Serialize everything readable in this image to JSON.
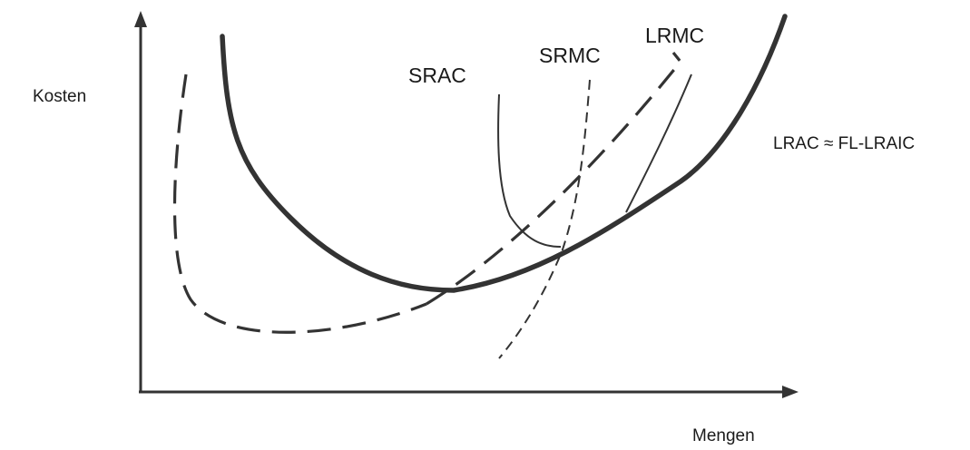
{
  "axes": {
    "y_label": "Kosten",
    "x_label": "Mengen"
  },
  "curves": {
    "srac_label": "SRAC",
    "srmc_label": "SRMC",
    "lrmc_label": "LRMC",
    "lrac_label": "LRAC ≈ FL-LRAIC"
  },
  "colors": {
    "stroke": "#333333",
    "text": "#1a1a1a"
  }
}
